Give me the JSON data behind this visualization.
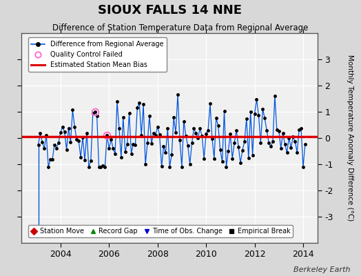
{
  "title": "SIOUX FALLS 14 NNE",
  "subtitle": "Difference of Station Temperature Data from Regional Average",
  "xlabel_years": [
    2004,
    2006,
    2008,
    2010,
    2012,
    2014
  ],
  "xlim": [
    2002.4,
    2014.6
  ],
  "ylim": [
    -4,
    4
  ],
  "yticks": [
    -3,
    -2,
    -1,
    0,
    1,
    2,
    3
  ],
  "ytick_labels": [
    "-3",
    "-2",
    "-1",
    "0",
    "1",
    "2",
    "3"
  ],
  "bias_line_y": 0.05,
  "line_color": "#0055dd",
  "marker_color": "#000000",
  "bias_color": "#dd0000",
  "qc_color": "#ff66cc",
  "background_color": "#d8d8d8",
  "plot_bg_color": "#f0f0f0",
  "grid_color": "#ffffff",
  "vertical_line_x_start": 2002.75,
  "vertical_line_x_end": 2003.08,
  "legend1_items": [
    {
      "label": "Difference from Regional Average",
      "color": "#0055dd",
      "marker": "o",
      "linestyle": "-"
    },
    {
      "label": "Quality Control Failed",
      "color": "#ff66cc",
      "marker": "o",
      "linestyle": "none"
    },
    {
      "label": "Estimated Station Mean Bias",
      "color": "#dd0000",
      "marker": null,
      "linestyle": "-"
    }
  ],
  "legend2_items": [
    {
      "label": "Station Move",
      "color": "#cc0000",
      "marker": "D"
    },
    {
      "label": "Record Gap",
      "color": "#008800",
      "marker": "^"
    },
    {
      "label": "Time of Obs. Change",
      "color": "#0000cc",
      "marker": "v"
    },
    {
      "label": "Empirical Break",
      "color": "#000000",
      "marker": "s"
    }
  ],
  "watermark": "Berkeley Earth",
  "ylabel_right": "Monthly Temperature Anomaly Difference (°C)"
}
